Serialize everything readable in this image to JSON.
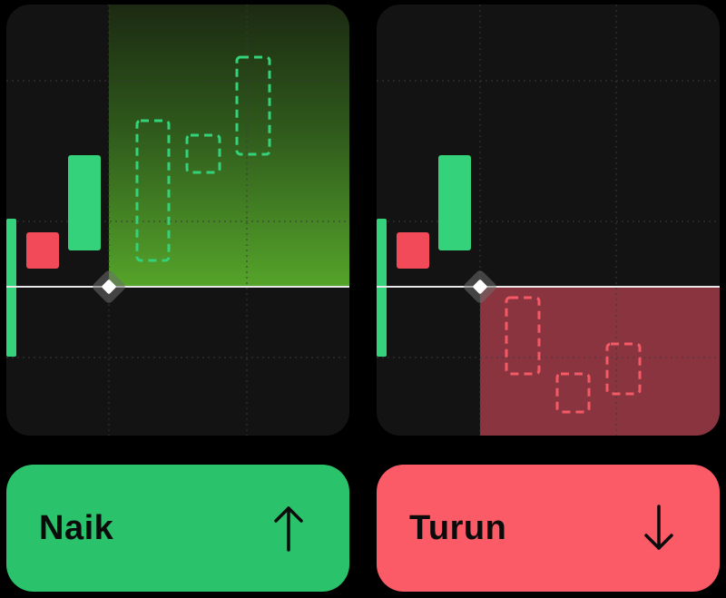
{
  "colors": {
    "background": "#000000",
    "panel": "#131313",
    "green": "#2ac26a",
    "red": "#fb5b66",
    "candle_green": "#34d27a",
    "candle_red": "#f24a58"
  },
  "up_panel": {
    "button_label": "Naik",
    "arrow_icon": "arrow-up-icon"
  },
  "down_panel": {
    "button_label": "Turun",
    "arrow_icon": "arrow-down-icon"
  }
}
